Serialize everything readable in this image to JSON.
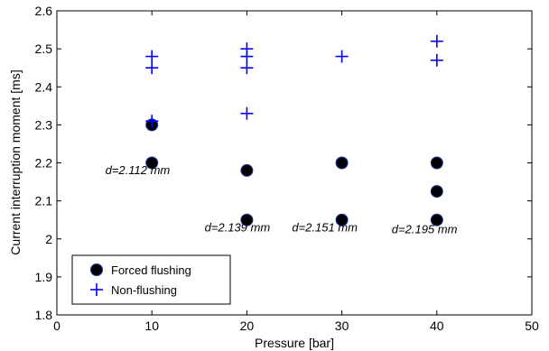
{
  "chart_data": {
    "type": "scatter",
    "title": "",
    "xlabel": "Pressure [bar]",
    "ylabel": "Current interruption moment [ms]",
    "xlim": [
      0,
      50
    ],
    "ylim": [
      1.8,
      2.6
    ],
    "xticks": [
      "0",
      "10",
      "20",
      "30",
      "40",
      "50"
    ],
    "yticks": [
      "1.8",
      "1.9",
      "2",
      "2.1",
      "2.2",
      "2.3",
      "2.4",
      "2.5",
      "2.6"
    ],
    "grid": false,
    "legend_position": "bottom-left",
    "series": [
      {
        "name": "Forced flushing",
        "marker": "filled-circle",
        "color": "#000000",
        "points": [
          {
            "x": 10,
            "y": 2.3
          },
          {
            "x": 10,
            "y": 2.2
          },
          {
            "x": 20,
            "y": 2.18
          },
          {
            "x": 20,
            "y": 2.05
          },
          {
            "x": 30,
            "y": 2.2
          },
          {
            "x": 30,
            "y": 2.05
          },
          {
            "x": 40,
            "y": 2.2
          },
          {
            "x": 40,
            "y": 2.125
          },
          {
            "x": 40,
            "y": 2.05
          }
        ]
      },
      {
        "name": "Non-flushing",
        "marker": "plus",
        "color": "#0000ff",
        "points": [
          {
            "x": 10,
            "y": 2.48
          },
          {
            "x": 10,
            "y": 2.45
          },
          {
            "x": 10,
            "y": 2.31
          },
          {
            "x": 20,
            "y": 2.5
          },
          {
            "x": 20,
            "y": 2.48
          },
          {
            "x": 20,
            "y": 2.45
          },
          {
            "x": 20,
            "y": 2.33
          },
          {
            "x": 30,
            "y": 2.48
          },
          {
            "x": 40,
            "y": 2.52
          },
          {
            "x": 40,
            "y": 2.47
          }
        ]
      }
    ],
    "annotations": [
      {
        "text": "d=2.112 mm",
        "x": 8.5,
        "y": 2.17
      },
      {
        "text": "d=2.139 mm",
        "x": 19.0,
        "y": 2.02
      },
      {
        "text": "d=2.151 mm",
        "x": 28.2,
        "y": 2.02
      },
      {
        "text": "d=2.195 mm",
        "x": 38.7,
        "y": 2.015
      }
    ]
  }
}
